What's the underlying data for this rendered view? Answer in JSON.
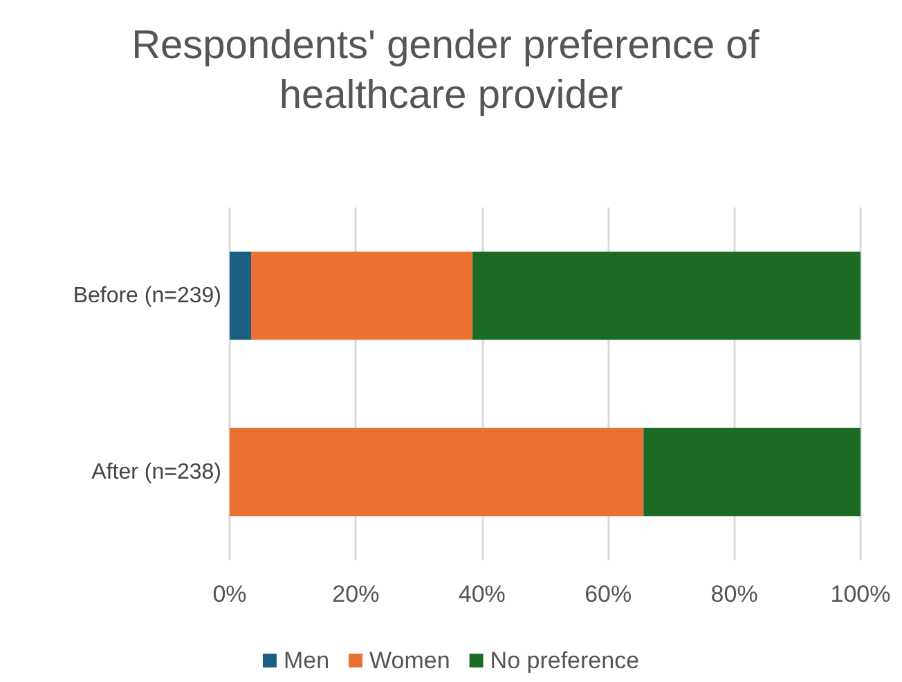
{
  "chart_data": {
    "type": "bar",
    "title": "Respondents' gender preference of healthcare provider",
    "orientation": "horizontal",
    "stacked": true,
    "categories": [
      "Before (n=239)",
      "After (n=238)"
    ],
    "series": [
      {
        "name": "Men",
        "color": "#1a5f82",
        "values": [
          3.4,
          0
        ]
      },
      {
        "name": "Women",
        "color": "#e97132",
        "values": [
          35.1,
          65.6
        ]
      },
      {
        "name": "No preference",
        "color": "#1b6b25",
        "values": [
          61.5,
          34.4
        ]
      }
    ],
    "xlim": [
      0,
      100
    ],
    "xticks": [
      {
        "value": 0,
        "label": "0%"
      },
      {
        "value": 20,
        "label": "20%"
      },
      {
        "value": 40,
        "label": "40%"
      },
      {
        "value": 60,
        "label": "60%"
      },
      {
        "value": 80,
        "label": "80%"
      },
      {
        "value": 100,
        "label": "100%"
      }
    ],
    "grid": "x",
    "legend": "bottom"
  }
}
